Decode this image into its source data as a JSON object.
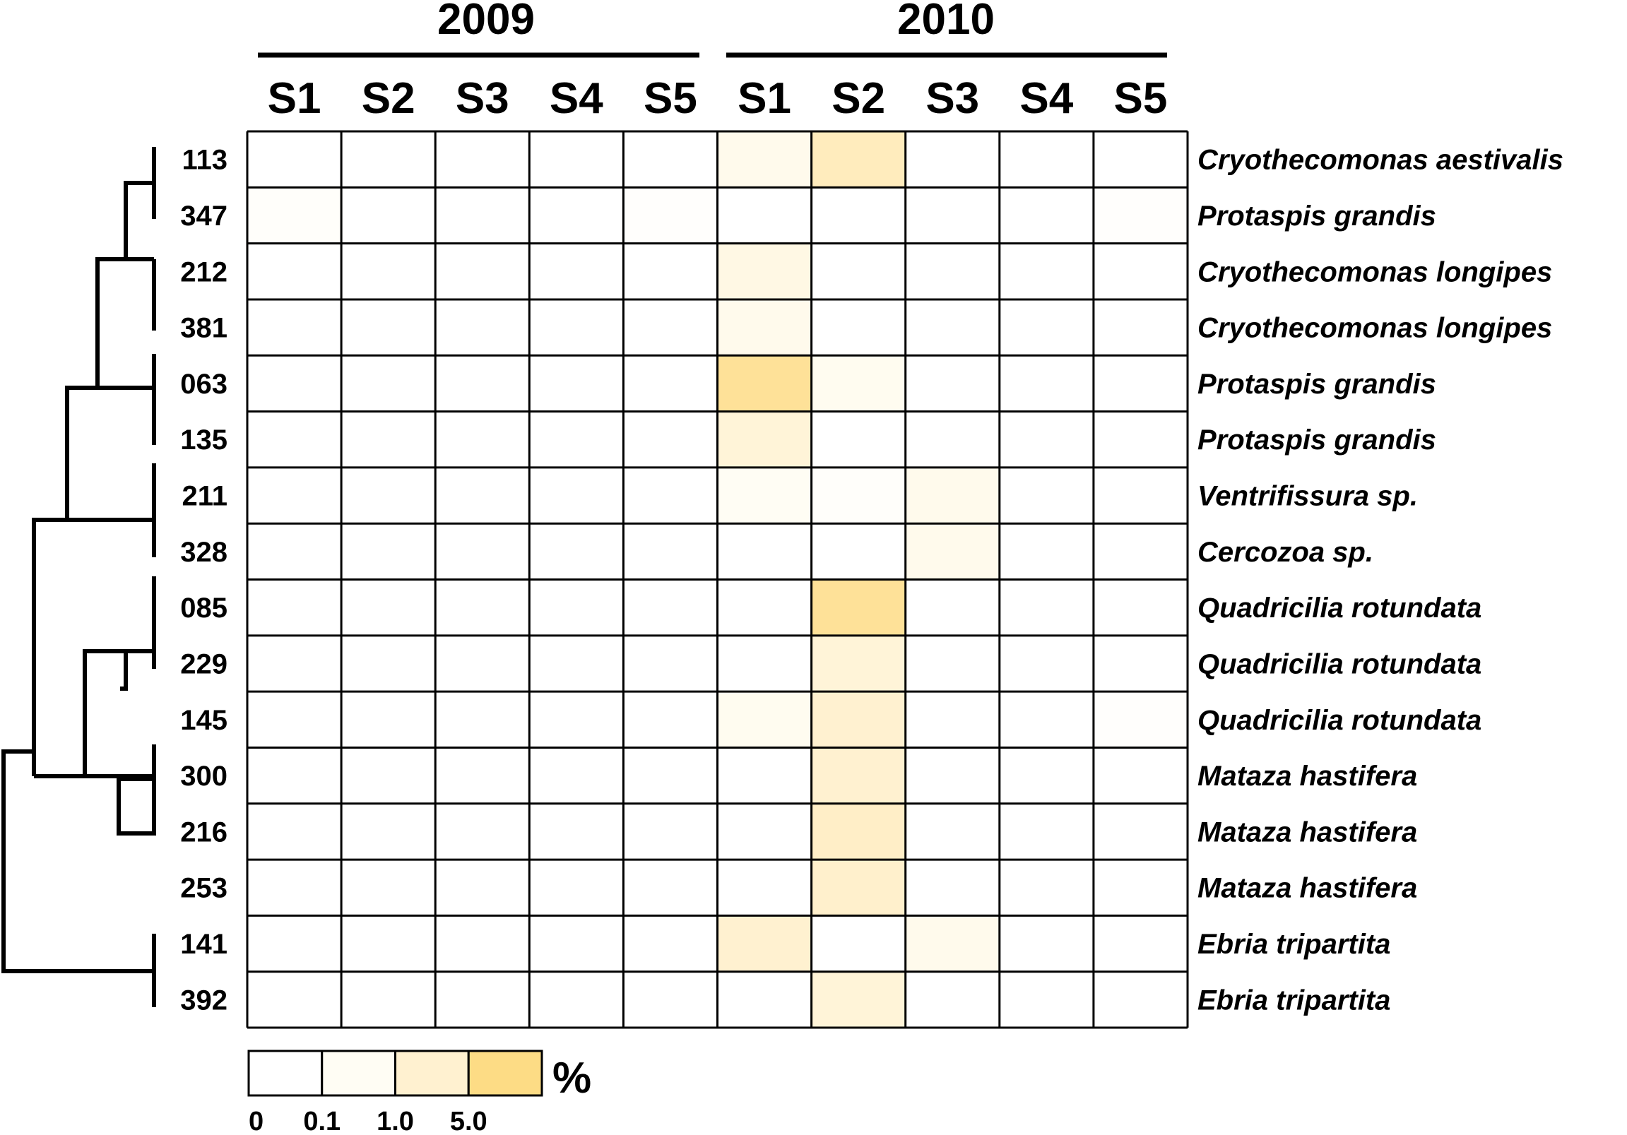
{
  "chart_data": {
    "type": "heatmap",
    "years": [
      "2009",
      "2010"
    ],
    "columns": [
      "S1",
      "S2",
      "S3",
      "S4",
      "S5",
      "S1",
      "S2",
      "S3",
      "S4",
      "S5"
    ],
    "rows": [
      {
        "otu": "113",
        "species": "Cryothecomonas aestivalis",
        "values": [
          0,
          0,
          0,
          0,
          0,
          0.3,
          2.0,
          0,
          0,
          0
        ]
      },
      {
        "otu": "347",
        "species": "Protaspis grandis",
        "values": [
          0.05,
          0,
          0,
          0,
          0.03,
          0,
          0,
          0,
          0,
          0.03
        ]
      },
      {
        "otu": "212",
        "species": "Cryothecomonas longipes",
        "values": [
          0,
          0,
          0,
          0,
          0,
          0.5,
          0,
          0,
          0,
          0
        ]
      },
      {
        "otu": "381",
        "species": "Cryothecomonas longipes",
        "values": [
          0,
          0,
          0,
          0,
          0,
          0.3,
          0,
          0,
          0,
          0
        ]
      },
      {
        "otu": "063",
        "species": "Protaspis grandis",
        "values": [
          0,
          0,
          0,
          0,
          0,
          4.0,
          0.2,
          0,
          0,
          0
        ]
      },
      {
        "otu": "135",
        "species": "Protaspis grandis",
        "values": [
          0,
          0,
          0,
          0,
          0,
          0.8,
          0,
          0,
          0,
          0
        ]
      },
      {
        "otu": "211",
        "species": "Ventrifissura sp.",
        "values": [
          0,
          0,
          0,
          0,
          0,
          0.1,
          0.05,
          0.3,
          0,
          0
        ]
      },
      {
        "otu": "328",
        "species": "Cercozoa sp.",
        "values": [
          0,
          0,
          0,
          0,
          0,
          0,
          0,
          0.3,
          0,
          0
        ]
      },
      {
        "otu": "085",
        "species": "Quadricilia rotundata",
        "values": [
          0,
          0,
          0,
          0,
          0,
          0,
          4.0,
          0,
          0,
          0
        ]
      },
      {
        "otu": "229",
        "species": "Quadricilia rotundata",
        "values": [
          0,
          0,
          0,
          0,
          0,
          0,
          0.8,
          0,
          0,
          0
        ]
      },
      {
        "otu": "145",
        "species": "Quadricilia rotundata",
        "values": [
          0,
          0,
          0,
          0,
          0,
          0.2,
          1.0,
          0,
          0,
          0.03
        ]
      },
      {
        "otu": "300",
        "species": "Mataza hastifera",
        "values": [
          0,
          0,
          0,
          0,
          0,
          0,
          1.0,
          0,
          0,
          0
        ]
      },
      {
        "otu": "216",
        "species": "Mataza hastifera",
        "values": [
          0,
          0,
          0,
          0,
          0,
          0,
          1.5,
          0,
          0,
          0
        ]
      },
      {
        "otu": "253",
        "species": "Mataza hastifera",
        "values": [
          0,
          0,
          0,
          0,
          0,
          0,
          1.2,
          0,
          0,
          0
        ]
      },
      {
        "otu": "141",
        "species": "Ebria tripartita",
        "values": [
          0,
          0,
          0,
          0,
          0,
          1.0,
          0,
          0.3,
          0,
          0
        ]
      },
      {
        "otu": "392",
        "species": "Ebria tripartita",
        "values": [
          0,
          0,
          0,
          0,
          0,
          0,
          0.8,
          0,
          0,
          0
        ]
      }
    ],
    "legend": {
      "unit": "%",
      "ticks": [
        "0",
        "0.1",
        "1.0",
        "5.0"
      ],
      "colors": [
        "#ffffff",
        "#fffdf4",
        "#fff1d0",
        "#fddc85"
      ]
    },
    "dendrogram": "present"
  }
}
